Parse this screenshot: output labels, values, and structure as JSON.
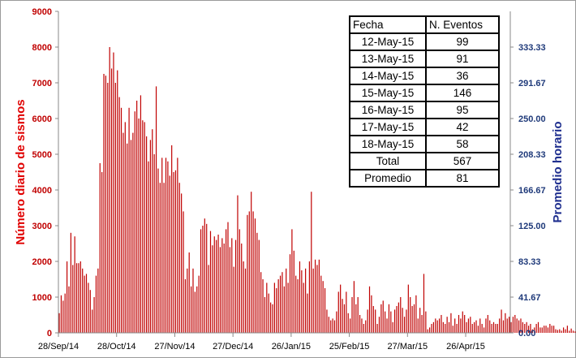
{
  "chart_data": {
    "type": "bar",
    "title": "",
    "ylabel": "Número diario de sismos",
    "y2label": "Promedio horario",
    "ylim": [
      0,
      9000
    ],
    "y2lim": [
      0,
      375
    ],
    "x_start": "2014-09-28",
    "x_end": "2015-05-18",
    "yticks": [
      "0",
      "1000",
      "2000",
      "3000",
      "4000",
      "5000",
      "6000",
      "7000",
      "8000",
      "9000"
    ],
    "y2ticks": [
      "0.00",
      "41.67",
      "83.33",
      "125.00",
      "166.67",
      "208.33",
      "250.00",
      "291.67",
      "333.33"
    ],
    "xticks": [
      {
        "date": "2014-09-28",
        "label": "28/Sep/14"
      },
      {
        "date": "2014-10-28",
        "label": "28/Oct/14"
      },
      {
        "date": "2014-11-27",
        "label": "27/Nov/14"
      },
      {
        "date": "2014-12-27",
        "label": "27/Dec/14"
      },
      {
        "date": "2015-01-26",
        "label": "26/Jan/15"
      },
      {
        "date": "2015-02-25",
        "label": "25/Feb/15"
      },
      {
        "date": "2015-03-27",
        "label": "27/Mar/15"
      },
      {
        "date": "2015-04-26",
        "label": "26/Apr/15"
      }
    ],
    "grid": "none",
    "bar_color": "#c00000",
    "series": [
      {
        "values": [
          550,
          1050,
          900,
          1100,
          2000,
          1300,
          2800,
          1900,
          2700,
          1950,
          1950,
          2000,
          1800,
          1600,
          1650,
          1400,
          1200,
          650,
          1000,
          1600,
          1800,
          4750,
          4500,
          7250,
          7200,
          7000,
          8000,
          7400,
          7850,
          7000,
          7350,
          6600,
          6300,
          5600,
          5900,
          5300,
          6300,
          5400,
          5600,
          6200,
          6500,
          6000,
          6650,
          5950,
          5900,
          5500,
          4800,
          5400,
          5700,
          5000,
          6900,
          4600,
          4200,
          4900,
          4200,
          4900,
          4800,
          4400,
          5250,
          4500,
          4550,
          4900,
          4200,
          3900,
          3400,
          1500,
          1800,
          2250,
          1300,
          1800,
          1150,
          1300,
          1600,
          2900,
          3000,
          3200,
          3050,
          1900,
          2850,
          2450,
          2700,
          2600,
          2750,
          2400,
          2650,
          2500,
          2900,
          3100,
          2400,
          2650,
          1850,
          2600,
          3850,
          2900,
          2500,
          2000,
          1800,
          3300,
          3400,
          3950,
          3400,
          3200,
          2800,
          2600,
          1700,
          1500,
          1000,
          1400,
          1100,
          850,
          800,
          1400,
          1250,
          1500,
          1600,
          1700,
          1300,
          1800,
          1400,
          2200,
          2900,
          2300,
          1600,
          1500,
          2000,
          1750,
          1400,
          1800,
          1100,
          2000,
          3950,
          1800,
          2050,
          1900,
          2050,
          1600,
          1450,
          1250,
          650,
          450,
          350,
          400,
          350,
          600,
          1150,
          1350,
          950,
          800,
          1150,
          550,
          400,
          1000,
          1450,
          800,
          1000,
          500,
          400,
          250,
          350,
          650,
          1300,
          1050,
          750,
          650,
          250,
          450,
          800,
          900,
          600,
          400,
          800,
          600,
          300,
          650,
          750,
          850,
          1000,
          700,
          450,
          650,
          1350,
          1000,
          750,
          800,
          1050,
          400,
          700,
          500,
          1650,
          600,
          100,
          150,
          250,
          300,
          400,
          350,
          400,
          500,
          300,
          250,
          450,
          300,
          550,
          200,
          400,
          250,
          500,
          400,
          600,
          500,
          300,
          400,
          450,
          250,
          300,
          350,
          200,
          400,
          250,
          150,
          400,
          500,
          350,
          250,
          300,
          250,
          250,
          400,
          650,
          350,
          550,
          400,
          450,
          300,
          450,
          500,
          400,
          350,
          400,
          300,
          250,
          300,
          200,
          250,
          100,
          150,
          250,
          300,
          150,
          150,
          200,
          200,
          150,
          250,
          200,
          200,
          100,
          80,
          100,
          60,
          150,
          100,
          200,
          60,
          120,
          60,
          40
        ]
      }
    ]
  },
  "table": {
    "headers": [
      "Fecha",
      "N. Eventos"
    ],
    "rows": [
      [
        "12-May-15",
        "99"
      ],
      [
        "13-May-15",
        "91"
      ],
      [
        "14-May-15",
        "36"
      ],
      [
        "15-May-15",
        "146"
      ],
      [
        "16-May-15",
        "95"
      ],
      [
        "17-May-15",
        "42"
      ],
      [
        "18-May-15",
        "58"
      ],
      [
        "Total",
        "567"
      ],
      [
        "Promedio",
        "81"
      ]
    ]
  }
}
